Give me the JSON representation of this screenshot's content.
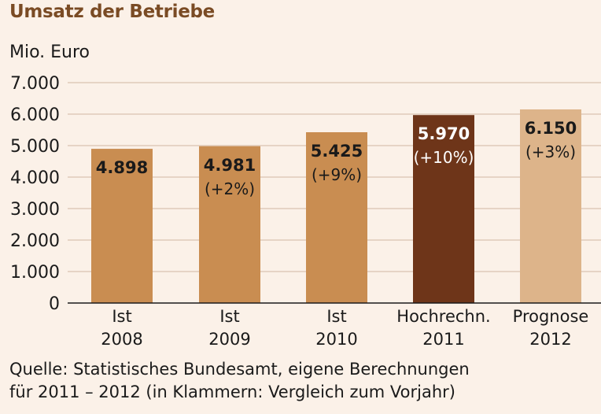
{
  "colors": {
    "background": "#fbf1e8",
    "title": "#7a4b24",
    "gridline": "#d9c4b0"
  },
  "title": "Umsatz der Betriebe",
  "source": {
    "line1": "Quelle: Statistisches Bundesamt, eigene Berechnungen",
    "line2": "für 2011 – 2012 (in Klammern: Vergleich zum Vorjahr)"
  },
  "chart_data": {
    "type": "bar",
    "ylabel": "Mio. Euro",
    "ylim": [
      0,
      7000
    ],
    "yticks": [
      "0",
      "1.000",
      "2.000",
      "3.000",
      "4.000",
      "5.000",
      "6.000",
      "7.000"
    ],
    "grid": true,
    "categories": [
      [
        "Ist",
        "2008"
      ],
      [
        "Ist",
        "2009"
      ],
      [
        "Ist",
        "2010"
      ],
      [
        "Hochrechn.",
        "2011"
      ],
      [
        "Prognose",
        "2012"
      ]
    ],
    "values": [
      4898,
      4981,
      5425,
      5970,
      6150
    ],
    "value_labels": [
      "4.898",
      "4.981",
      "5.425",
      "5.970",
      "6.150"
    ],
    "change_labels": [
      "",
      "(+2%)",
      "(+9%)",
      "(+10%)",
      "(+3%)"
    ],
    "bar_colors": [
      "#c98d51",
      "#c98d51",
      "#c98d51",
      "#6e3519",
      "#ddb48a"
    ],
    "label_colors": [
      "#1a1a1a",
      "#1a1a1a",
      "#1a1a1a",
      "#ffffff",
      "#1a1a1a"
    ]
  }
}
